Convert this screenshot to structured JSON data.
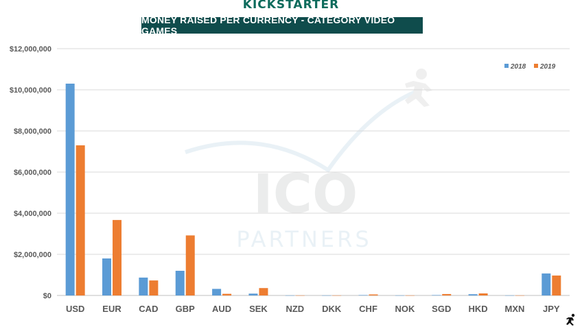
{
  "brand": "KICKSTARTER",
  "chart_data": {
    "type": "bar",
    "title": "MONEY RAISED PER CURRENCY - CATEGORY VIDEO GAMES",
    "xlabel": "",
    "ylabel": "",
    "categories": [
      "USD",
      "EUR",
      "CAD",
      "GBP",
      "AUD",
      "SEK",
      "NZD",
      "DKK",
      "CHF",
      "NOK",
      "SGD",
      "HKD",
      "MXN",
      "JPY"
    ],
    "series": [
      {
        "name": "2018",
        "color": "#5b9bd5",
        "values": [
          10300000,
          1800000,
          870000,
          1200000,
          320000,
          90000,
          5000,
          5000,
          20000,
          5000,
          20000,
          60000,
          5000,
          1070000
        ]
      },
      {
        "name": "2019",
        "color": "#ed7d31",
        "values": [
          7300000,
          3670000,
          730000,
          2920000,
          80000,
          360000,
          5000,
          5000,
          50000,
          5000,
          70000,
          100000,
          5000,
          970000
        ]
      }
    ],
    "ylim": [
      0,
      12000000
    ],
    "yticks": [
      0,
      2000000,
      4000000,
      6000000,
      8000000,
      10000000,
      12000000
    ],
    "ytick_labels": [
      "$0",
      "$2,000,000",
      "$4,000,000",
      "$6,000,000",
      "$8,000,000",
      "$10,000,000",
      "$12,000,000"
    ],
    "grid": true,
    "legend": "top-right"
  },
  "watermark": {
    "top": "ICO",
    "bottom": "PARTNERS"
  },
  "icons": {
    "watermark_runner": "runner-icon",
    "corner": "runner-icon"
  }
}
